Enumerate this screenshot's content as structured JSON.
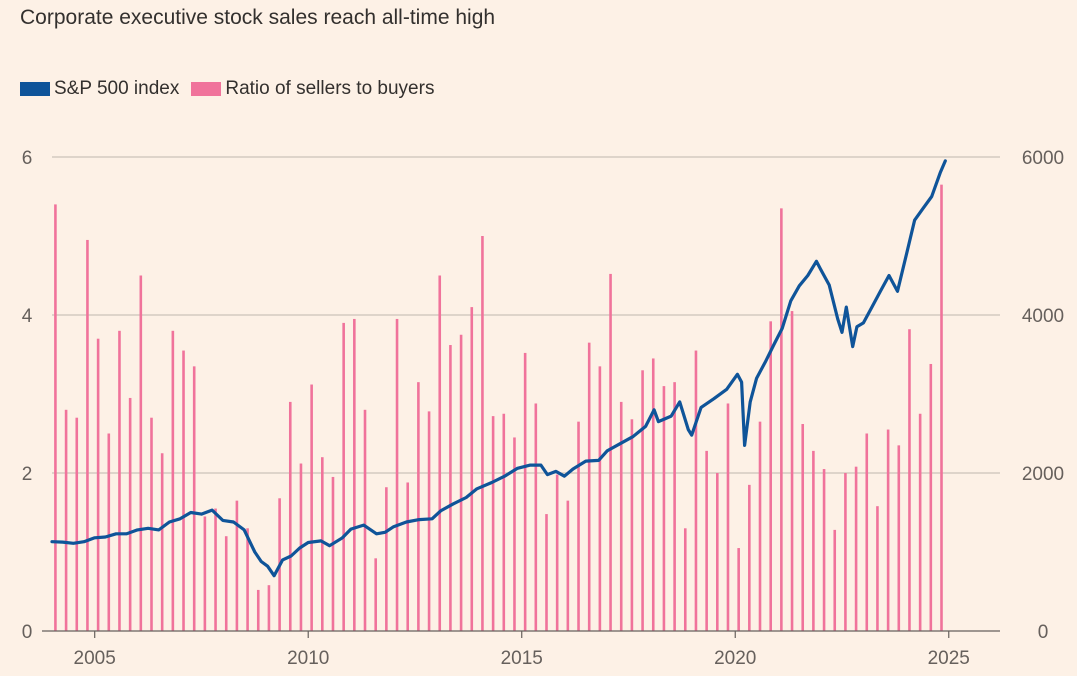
{
  "chart_data": {
    "type": "bar+line",
    "title": "Corporate executive stock sales reach all-time high",
    "legend": {
      "placement": "top-left"
    },
    "x_ticks": [
      "2005",
      "2010",
      "2015",
      "2020",
      "2025"
    ],
    "x_tick_values": [
      2005,
      2010,
      2015,
      2020,
      2025
    ],
    "xlim": [
      2004,
      2026.2
    ],
    "y_left": {
      "ylim": [
        0,
        6
      ],
      "ticks": [
        "0",
        "2",
        "4",
        "6"
      ],
      "tick_values": [
        0,
        2,
        4,
        6
      ]
    },
    "y_right": {
      "ylim": [
        0,
        6000
      ],
      "ticks": [
        "0",
        "2000",
        "4000",
        "6000"
      ],
      "tick_values": [
        0,
        2000,
        4000,
        6000
      ]
    },
    "grid": true,
    "series": [
      {
        "name": "Ratio of sellers to buyers",
        "type": "bar",
        "axis": "left",
        "color": "#f0739b",
        "x": [
          2004.08,
          2004.33,
          2004.58,
          2004.83,
          2005.08,
          2005.33,
          2005.58,
          2005.83,
          2006.08,
          2006.33,
          2006.58,
          2006.83,
          2007.08,
          2007.33,
          2007.58,
          2007.83,
          2008.08,
          2008.33,
          2008.58,
          2008.83,
          2009.08,
          2009.33,
          2009.58,
          2009.83,
          2010.08,
          2010.33,
          2010.58,
          2010.83,
          2011.08,
          2011.33,
          2011.58,
          2011.83,
          2012.08,
          2012.33,
          2012.58,
          2012.83,
          2013.08,
          2013.33,
          2013.58,
          2013.83,
          2014.08,
          2014.33,
          2014.58,
          2014.83,
          2015.08,
          2015.33,
          2015.58,
          2015.83,
          2016.08,
          2016.33,
          2016.58,
          2016.83,
          2017.08,
          2017.33,
          2017.58,
          2017.83,
          2018.08,
          2018.33,
          2018.58,
          2018.83,
          2019.08,
          2019.33,
          2019.58,
          2019.83,
          2020.08,
          2020.33,
          2020.58,
          2020.83,
          2021.08,
          2021.33,
          2021.58,
          2021.83,
          2022.08,
          2022.33,
          2022.58,
          2022.83,
          2023.08,
          2023.33,
          2023.58,
          2023.83,
          2024.08,
          2024.33,
          2024.58,
          2024.83
        ],
        "values": [
          5.4,
          2.8,
          2.7,
          4.95,
          3.7,
          2.5,
          3.8,
          2.95,
          4.5,
          2.7,
          2.25,
          3.8,
          3.55,
          3.35,
          1.45,
          1.55,
          1.2,
          1.65,
          1.3,
          0.52,
          0.58,
          1.68,
          2.9,
          2.12,
          3.12,
          2.2,
          1.95,
          3.9,
          3.95,
          2.8,
          0.92,
          1.82,
          3.95,
          1.88,
          3.15,
          2.78,
          4.5,
          3.62,
          3.75,
          4.1,
          5.0,
          2.72,
          2.75,
          2.45,
          3.52,
          2.88,
          1.48,
          1.98,
          1.65,
          2.65,
          3.65,
          3.35,
          4.52,
          2.9,
          2.68,
          3.3,
          3.45,
          3.1,
          3.15,
          1.3,
          3.55,
          2.28,
          2.0,
          2.88,
          1.05,
          1.85,
          2.65,
          3.92,
          5.35,
          4.05,
          2.62,
          2.28,
          2.05,
          1.28,
          2.0,
          2.08,
          2.5,
          1.58,
          2.55,
          2.35,
          3.82,
          2.75,
          3.38,
          5.65
        ]
      },
      {
        "name": "S&P 500 index",
        "type": "line",
        "axis": "right",
        "color": "#0f5499",
        "x": [
          2004.0,
          2004.25,
          2004.5,
          2004.75,
          2005.0,
          2005.25,
          2005.5,
          2005.75,
          2006.0,
          2006.25,
          2006.5,
          2006.75,
          2007.0,
          2007.25,
          2007.5,
          2007.75,
          2008.0,
          2008.25,
          2008.5,
          2008.75,
          2008.9,
          2009.05,
          2009.2,
          2009.4,
          2009.6,
          2009.8,
          2010.0,
          2010.3,
          2010.5,
          2010.8,
          2011.0,
          2011.3,
          2011.6,
          2011.8,
          2012.0,
          2012.3,
          2012.6,
          2012.9,
          2013.1,
          2013.4,
          2013.7,
          2013.95,
          2014.3,
          2014.6,
          2014.9,
          2015.2,
          2015.45,
          2015.6,
          2015.8,
          2016.0,
          2016.2,
          2016.5,
          2016.8,
          2017.0,
          2017.3,
          2017.6,
          2017.9,
          2018.1,
          2018.2,
          2018.5,
          2018.7,
          2018.9,
          2018.98,
          2019.2,
          2019.5,
          2019.8,
          2020.05,
          2020.15,
          2020.22,
          2020.35,
          2020.5,
          2020.7,
          2020.9,
          2021.1,
          2021.3,
          2021.5,
          2021.7,
          2021.9,
          2022.0,
          2022.2,
          2022.4,
          2022.5,
          2022.6,
          2022.75,
          2022.85,
          2023.0,
          2023.2,
          2023.4,
          2023.6,
          2023.8,
          2024.0,
          2024.2,
          2024.4,
          2024.6,
          2024.8,
          2024.92
        ],
        "values": [
          1130,
          1125,
          1110,
          1130,
          1180,
          1190,
          1230,
          1230,
          1280,
          1300,
          1280,
          1380,
          1420,
          1500,
          1480,
          1530,
          1400,
          1380,
          1280,
          1000,
          880,
          820,
          700,
          900,
          950,
          1050,
          1120,
          1140,
          1080,
          1180,
          1290,
          1340,
          1230,
          1250,
          1320,
          1380,
          1410,
          1420,
          1520,
          1610,
          1690,
          1800,
          1880,
          1960,
          2060,
          2100,
          2100,
          1980,
          2020,
          1960,
          2050,
          2150,
          2160,
          2280,
          2370,
          2460,
          2590,
          2800,
          2650,
          2720,
          2900,
          2550,
          2480,
          2830,
          2940,
          3060,
          3250,
          3150,
          2350,
          2900,
          3200,
          3400,
          3620,
          3830,
          4180,
          4370,
          4500,
          4680,
          4580,
          4380,
          3950,
          3780,
          4100,
          3600,
          3850,
          3900,
          4100,
          4300,
          4500,
          4300,
          4750,
          5200,
          5350,
          5500,
          5800,
          5950
        ]
      }
    ]
  }
}
